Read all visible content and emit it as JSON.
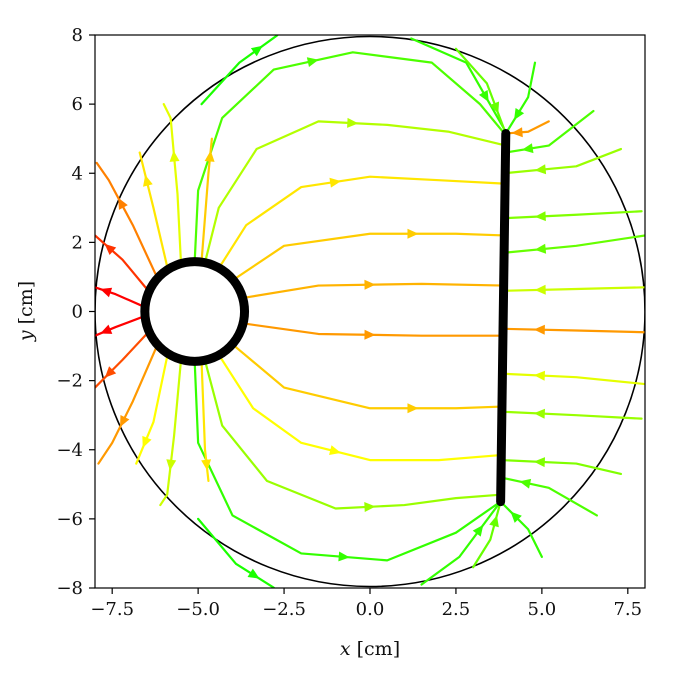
{
  "chart_data": {
    "type": "streamplot",
    "xlabel": {
      "var": "x",
      "unit": " [cm]"
    },
    "ylabel": {
      "var": "y",
      "unit": " [cm]"
    },
    "xlim": [
      -8,
      8
    ],
    "ylim": [
      -8,
      8
    ],
    "xticks": [
      -7.5,
      -5.0,
      -2.5,
      0.0,
      2.5,
      5.0,
      7.5
    ],
    "yticks": [
      -8,
      -6,
      -4,
      -2,
      0,
      2,
      4,
      6,
      8
    ],
    "xtick_labels": [
      "−7.5",
      "−5.0",
      "−2.5",
      "0.0",
      "2.5",
      "5.0",
      "7.5"
    ],
    "ytick_labels": [
      "−8",
      "−6",
      "−4",
      "−2",
      "0",
      "2",
      "4",
      "6",
      "8"
    ],
    "grid": false,
    "boundary_circle": {
      "cx": 0,
      "cy": 0,
      "r": 8
    },
    "electrodes": [
      {
        "name": "ring",
        "shape": "circle",
        "cx": -5.1,
        "cy": 0,
        "r": 1.45,
        "color": "#000000"
      },
      {
        "name": "plate",
        "shape": "segment",
        "x1": 3.95,
        "y1": 5.15,
        "x2": 3.8,
        "y2": -5.5,
        "color": "#000000"
      }
    ],
    "colormap": {
      "low": "#ff0000",
      "mid": "#ffff00",
      "high": "#00ff00"
    },
    "streamlines": [
      {
        "c": 0.85,
        "pts": [
          [
            -5.1,
            1.45
          ],
          [
            -5.0,
            3.5
          ],
          [
            -4.3,
            5.6
          ],
          [
            -2.8,
            7.0
          ],
          [
            -0.5,
            7.5
          ],
          [
            1.8,
            7.2
          ],
          [
            3.2,
            6.0
          ],
          [
            3.95,
            5.1
          ]
        ]
      },
      {
        "c": 0.65,
        "pts": [
          [
            -4.8,
            1.42
          ],
          [
            -4.4,
            3.0
          ],
          [
            -3.3,
            4.7
          ],
          [
            -1.5,
            5.5
          ],
          [
            0.5,
            5.4
          ],
          [
            2.3,
            5.2
          ],
          [
            3.95,
            4.8
          ]
        ]
      },
      {
        "c": 0.45,
        "pts": [
          [
            -4.4,
            1.25
          ],
          [
            -3.6,
            2.5
          ],
          [
            -2.0,
            3.6
          ],
          [
            0.0,
            3.9
          ],
          [
            2.0,
            3.8
          ],
          [
            3.9,
            3.7
          ]
        ]
      },
      {
        "c": 0.4,
        "pts": [
          [
            -4.0,
            0.9
          ],
          [
            -2.5,
            1.9
          ],
          [
            0.0,
            2.25
          ],
          [
            2.5,
            2.25
          ],
          [
            3.9,
            2.2
          ]
        ]
      },
      {
        "c": 0.35,
        "pts": [
          [
            -3.65,
            0.4
          ],
          [
            -1.5,
            0.75
          ],
          [
            1.5,
            0.8
          ],
          [
            3.9,
            0.75
          ]
        ]
      },
      {
        "c": 0.3,
        "pts": [
          [
            -3.65,
            -0.35
          ],
          [
            -1.5,
            -0.65
          ],
          [
            1.5,
            -0.7
          ],
          [
            3.85,
            -0.7
          ]
        ]
      },
      {
        "c": 0.4,
        "pts": [
          [
            -4.0,
            -0.95
          ],
          [
            -2.5,
            -2.2
          ],
          [
            0.0,
            -2.8
          ],
          [
            2.5,
            -2.8
          ],
          [
            3.85,
            -2.75
          ]
        ]
      },
      {
        "c": 0.5,
        "pts": [
          [
            -4.4,
            -1.25
          ],
          [
            -3.4,
            -2.8
          ],
          [
            -2.0,
            -3.8
          ],
          [
            0.0,
            -4.3
          ],
          [
            2.0,
            -4.3
          ],
          [
            3.85,
            -4.15
          ]
        ]
      },
      {
        "c": 0.7,
        "pts": [
          [
            -4.8,
            -1.42
          ],
          [
            -4.3,
            -3.3
          ],
          [
            -3.0,
            -4.9
          ],
          [
            -1.0,
            -5.7
          ],
          [
            1.0,
            -5.6
          ],
          [
            2.5,
            -5.4
          ],
          [
            3.8,
            -5.3
          ]
        ]
      },
      {
        "c": 0.9,
        "pts": [
          [
            -5.1,
            -1.45
          ],
          [
            -5.0,
            -3.8
          ],
          [
            -4.0,
            -5.9
          ],
          [
            -2.0,
            -7.0
          ],
          [
            0.5,
            -7.2
          ],
          [
            2.5,
            -6.4
          ],
          [
            3.8,
            -5.5
          ]
        ]
      },
      {
        "c": 0.0,
        "pts": [
          [
            -6.6,
            0.15
          ],
          [
            -7.4,
            0.5
          ],
          [
            -8.0,
            0.7
          ]
        ]
      },
      {
        "c": 0.0,
        "pts": [
          [
            -6.6,
            -0.15
          ],
          [
            -7.4,
            -0.45
          ],
          [
            -8.0,
            -0.7
          ]
        ]
      },
      {
        "c": 0.1,
        "pts": [
          [
            -6.45,
            0.6
          ],
          [
            -7.2,
            1.5
          ],
          [
            -8.0,
            2.2
          ]
        ]
      },
      {
        "c": 0.15,
        "pts": [
          [
            -6.45,
            -0.6
          ],
          [
            -7.2,
            -1.4
          ],
          [
            -8.0,
            -2.2
          ]
        ]
      },
      {
        "c": 0.25,
        "pts": [
          [
            -6.2,
            1.0
          ],
          [
            -6.9,
            2.5
          ],
          [
            -7.6,
            3.8
          ],
          [
            -7.95,
            4.3
          ]
        ]
      },
      {
        "c": 0.3,
        "pts": [
          [
            -6.2,
            -1.0
          ],
          [
            -6.9,
            -2.6
          ],
          [
            -7.5,
            -3.8
          ],
          [
            -7.9,
            -4.4
          ]
        ]
      },
      {
        "c": 0.45,
        "pts": [
          [
            -5.9,
            1.3
          ],
          [
            -6.3,
            3.0
          ],
          [
            -6.7,
            4.6
          ]
        ]
      },
      {
        "c": 0.5,
        "pts": [
          [
            -5.9,
            -1.3
          ],
          [
            -6.3,
            -3.2
          ],
          [
            -6.8,
            -4.4
          ]
        ]
      },
      {
        "c": 0.55,
        "pts": [
          [
            -5.5,
            1.42
          ],
          [
            -5.6,
            3.4
          ],
          [
            -5.8,
            5.6
          ],
          [
            -6.0,
            6.0
          ]
        ]
      },
      {
        "c": 0.6,
        "pts": [
          [
            -5.5,
            -1.42
          ],
          [
            -5.7,
            -3.6
          ],
          [
            -5.9,
            -5.3
          ],
          [
            -6.1,
            -5.6
          ]
        ]
      },
      {
        "c": 0.4,
        "pts": [
          [
            -4.9,
            1.45
          ],
          [
            -4.7,
            4.0
          ],
          [
            -4.6,
            5.0
          ]
        ]
      },
      {
        "c": 0.45,
        "pts": [
          [
            -4.9,
            -1.45
          ],
          [
            -4.8,
            -4.0
          ],
          [
            -4.7,
            -4.9
          ]
        ]
      },
      {
        "c": 0.95,
        "pts": [
          [
            -4.9,
            6.0
          ],
          [
            -3.8,
            7.2
          ],
          [
            -2.7,
            7.99
          ]
        ]
      },
      {
        "c": 0.95,
        "pts": [
          [
            -5.0,
            -6.0
          ],
          [
            -3.9,
            -7.3
          ],
          [
            -2.8,
            -7.99
          ]
        ]
      },
      {
        "c": 0.9,
        "pts": [
          [
            1.2,
            7.9
          ],
          [
            2.8,
            7.2
          ],
          [
            3.95,
            5.2
          ]
        ]
      },
      {
        "c": 0.8,
        "pts": [
          [
            2.5,
            7.6
          ],
          [
            3.4,
            6.6
          ],
          [
            3.95,
            5.15
          ]
        ]
      },
      {
        "c": 0.9,
        "pts": [
          [
            4.8,
            7.2
          ],
          [
            4.6,
            6.2
          ],
          [
            3.95,
            5.15
          ]
        ]
      },
      {
        "c": 0.3,
        "pts": [
          [
            5.2,
            5.5
          ],
          [
            4.6,
            5.2
          ],
          [
            3.95,
            5.15
          ]
        ]
      },
      {
        "c": 0.85,
        "pts": [
          [
            6.5,
            5.8
          ],
          [
            5.2,
            4.8
          ],
          [
            3.95,
            4.6
          ]
        ]
      },
      {
        "c": 0.7,
        "pts": [
          [
            7.3,
            4.7
          ],
          [
            6.0,
            4.2
          ],
          [
            3.9,
            4.0
          ]
        ]
      },
      {
        "c": 0.75,
        "pts": [
          [
            7.9,
            2.9
          ],
          [
            6.0,
            2.8
          ],
          [
            3.9,
            2.7
          ]
        ]
      },
      {
        "c": 0.8,
        "pts": [
          [
            8.0,
            2.2
          ],
          [
            6.0,
            1.9
          ],
          [
            3.9,
            1.7
          ]
        ]
      },
      {
        "c": 0.6,
        "pts": [
          [
            8.0,
            0.7
          ],
          [
            6.0,
            0.65
          ],
          [
            3.9,
            0.6
          ]
        ]
      },
      {
        "c": 0.3,
        "pts": [
          [
            8.0,
            -0.6
          ],
          [
            6.0,
            -0.55
          ],
          [
            3.85,
            -0.5
          ]
        ]
      },
      {
        "c": 0.55,
        "pts": [
          [
            8.0,
            -2.1
          ],
          [
            6.0,
            -1.9
          ],
          [
            3.85,
            -1.8
          ]
        ]
      },
      {
        "c": 0.7,
        "pts": [
          [
            7.9,
            -3.1
          ],
          [
            6.0,
            -3.0
          ],
          [
            3.85,
            -2.9
          ]
        ]
      },
      {
        "c": 0.75,
        "pts": [
          [
            7.3,
            -4.7
          ],
          [
            6.0,
            -4.4
          ],
          [
            3.85,
            -4.3
          ]
        ]
      },
      {
        "c": 0.85,
        "pts": [
          [
            6.6,
            -5.9
          ],
          [
            5.2,
            -5.1
          ],
          [
            3.8,
            -4.8
          ]
        ]
      },
      {
        "c": 0.9,
        "pts": [
          [
            5.0,
            -7.1
          ],
          [
            4.6,
            -6.3
          ],
          [
            3.8,
            -5.5
          ]
        ]
      },
      {
        "c": 0.8,
        "pts": [
          [
            3.0,
            -7.4
          ],
          [
            3.5,
            -6.6
          ],
          [
            3.8,
            -5.5
          ]
        ]
      },
      {
        "c": 0.9,
        "pts": [
          [
            1.5,
            -7.9
          ],
          [
            2.6,
            -7.1
          ],
          [
            3.8,
            -5.5
          ]
        ]
      }
    ]
  }
}
